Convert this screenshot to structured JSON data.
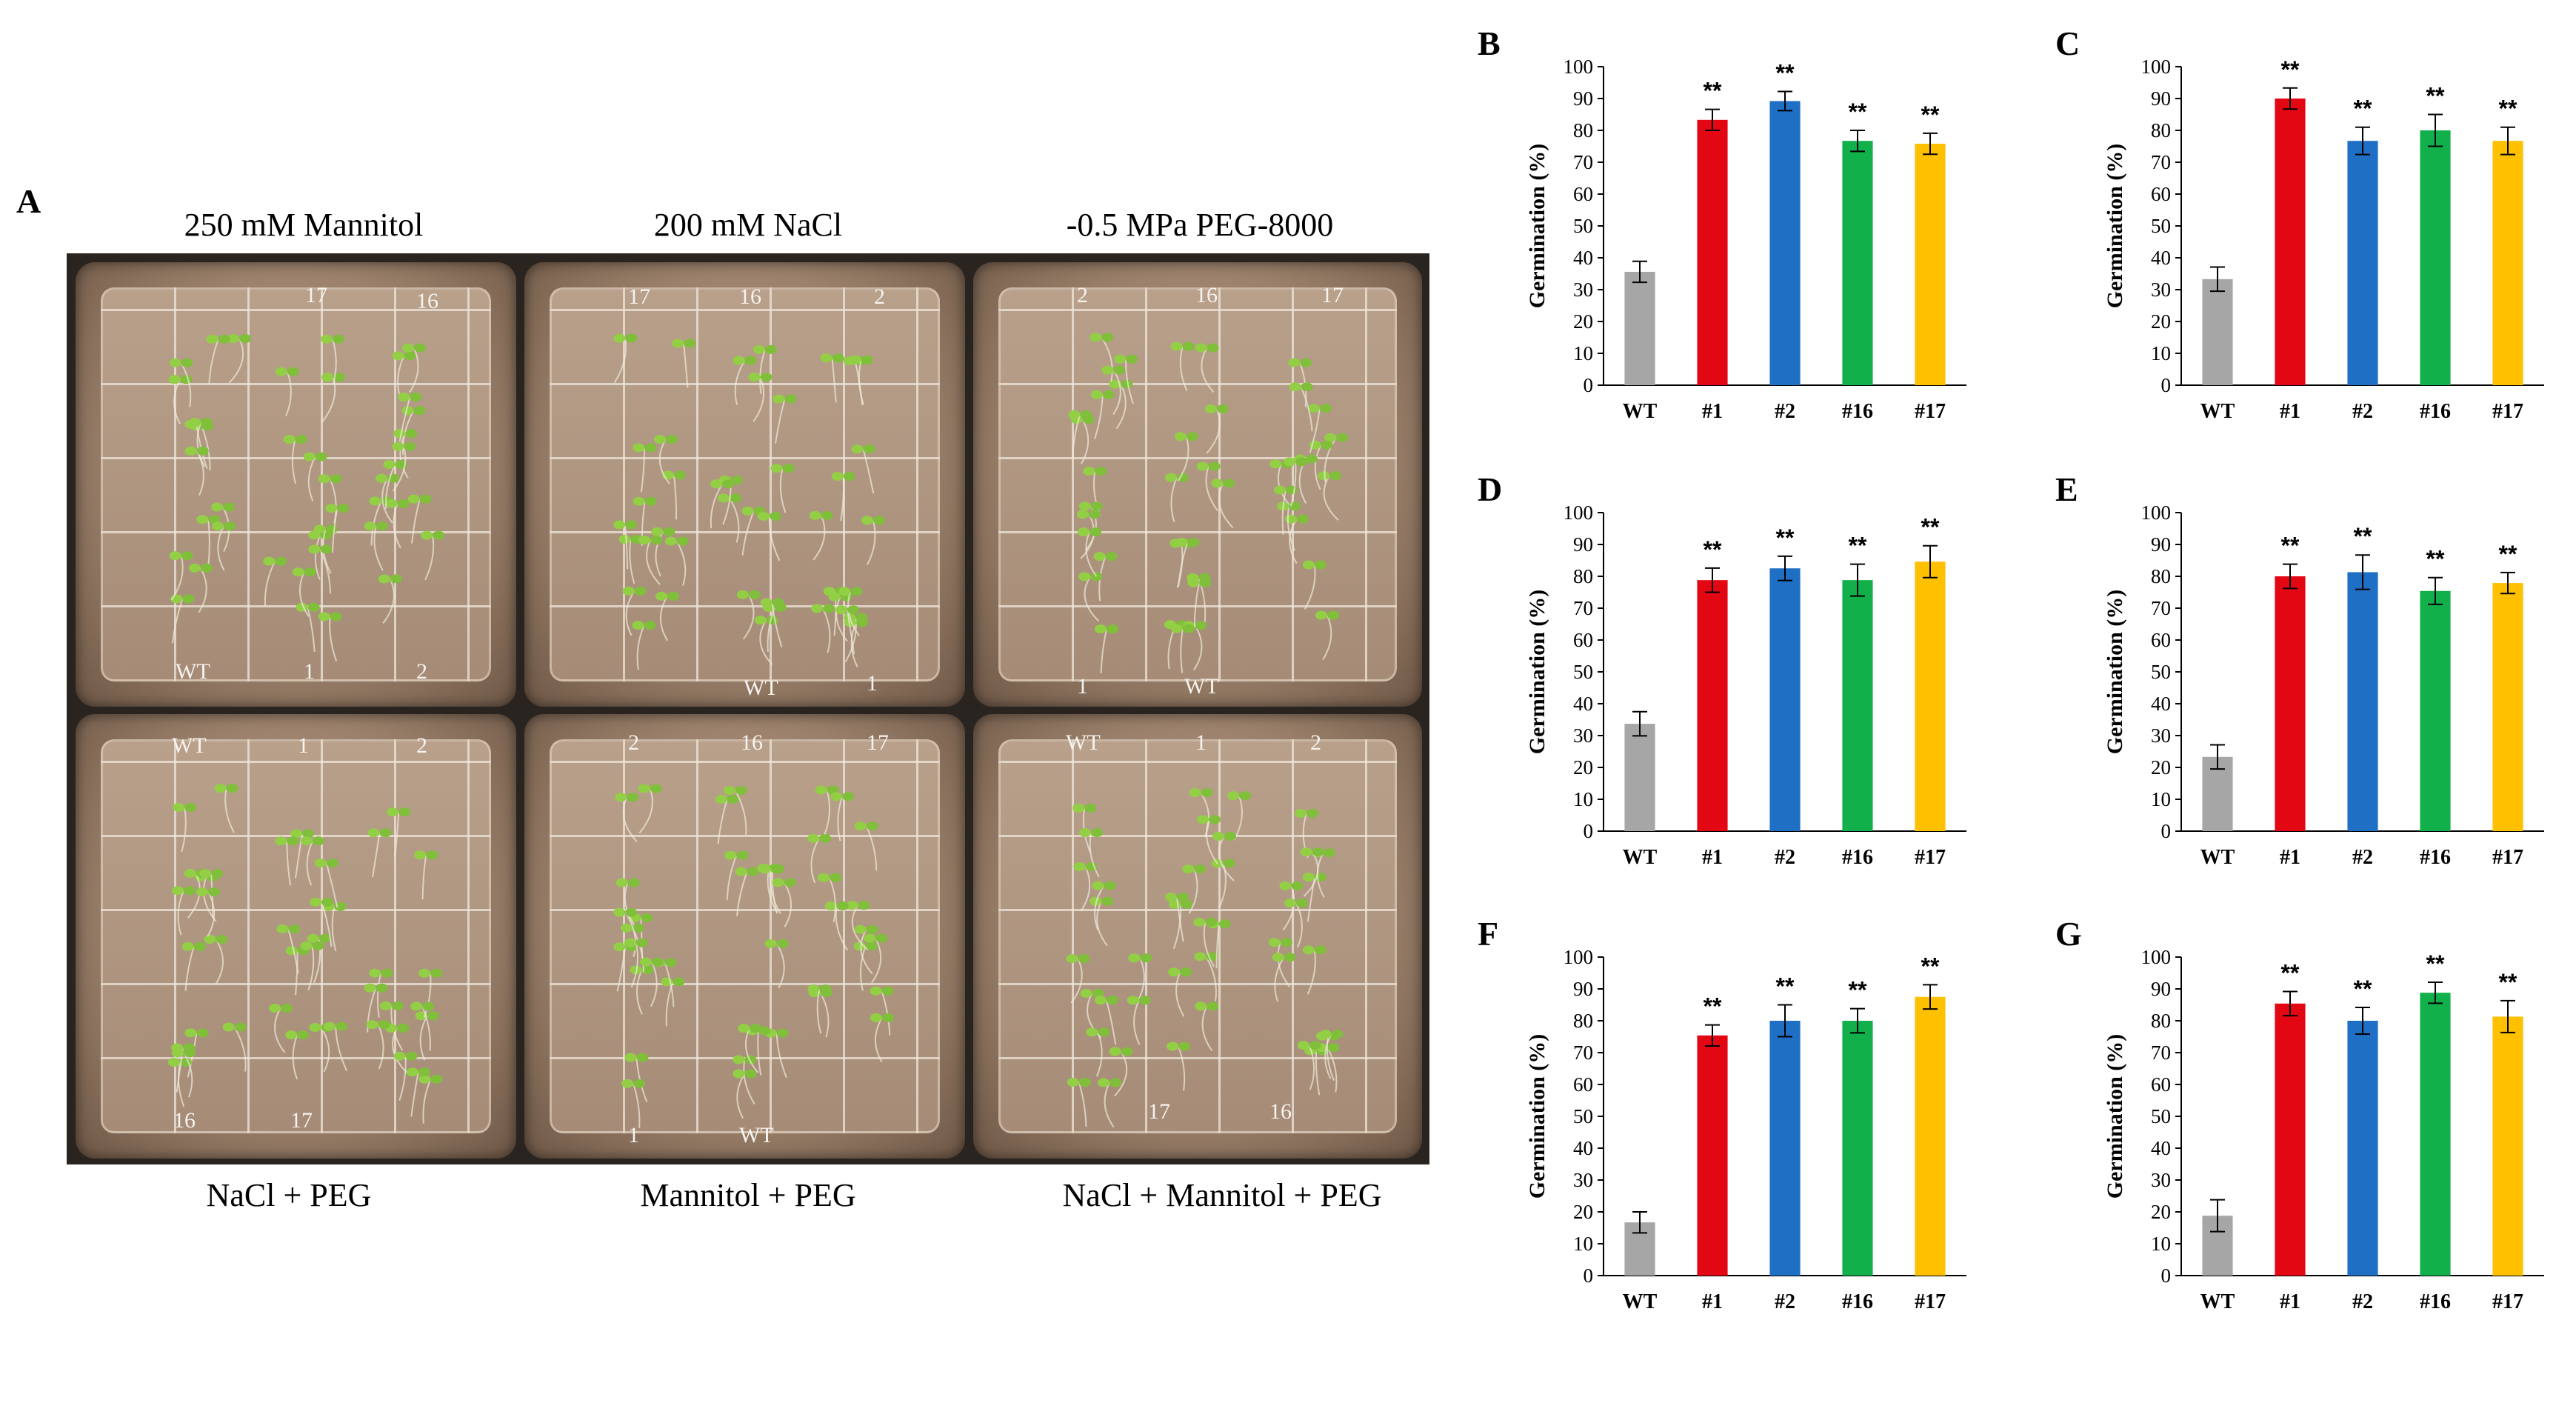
{
  "figure": {
    "panel_a_label": "A",
    "top_titles": [
      "250 mM Mannitol",
      "200 mM NaCl",
      "-0.5 MPa PEG-8000"
    ],
    "bottom_titles": [
      "NaCl + PEG",
      "Mannitol + PEG",
      "NaCl + Mannitol + PEG"
    ],
    "plates": [
      {
        "labels": [
          "17",
          "16",
          "WT",
          "1",
          "2"
        ]
      },
      {
        "labels": [
          "17",
          "16",
          "2",
          "WT",
          "1"
        ]
      },
      {
        "labels": [
          "2",
          "16",
          "17",
          "1",
          "WT"
        ]
      },
      {
        "labels": [
          "WT",
          "1",
          "2",
          "16",
          "17"
        ]
      },
      {
        "labels": [
          "2",
          "16",
          "17",
          "1",
          "WT"
        ]
      },
      {
        "labels": [
          "WT",
          "1",
          "2",
          "17",
          "16"
        ]
      }
    ],
    "significance_mark": "**",
    "colors": {
      "WT": "#a6a6a6",
      "#1": "#e30613",
      "#2": "#1f6fc5",
      "#16": "#12b04a",
      "#17": "#ffc000"
    }
  },
  "chart_data": [
    {
      "panel": "B",
      "type": "bar",
      "categories": [
        "WT",
        "#1",
        "#2",
        "#16",
        "#17"
      ],
      "values": [
        35.6,
        83.3,
        89.2,
        76.7,
        75.8
      ],
      "errors": [
        3.3,
        3.3,
        3.0,
        3.3,
        3.3
      ],
      "significance": [
        "",
        "**",
        "**",
        "**",
        "**"
      ],
      "xlabel": "",
      "ylabel": "Germination (%)",
      "ylim": [
        0,
        100
      ],
      "yticks": [
        0,
        10,
        20,
        30,
        40,
        50,
        60,
        70,
        80,
        90,
        100
      ]
    },
    {
      "panel": "C",
      "type": "bar",
      "categories": [
        "WT",
        "#1",
        "#2",
        "#16",
        "#17"
      ],
      "values": [
        33.3,
        90.0,
        76.7,
        80.0,
        76.7
      ],
      "errors": [
        3.8,
        3.3,
        4.3,
        5.0,
        4.3
      ],
      "significance": [
        "",
        "**",
        "**",
        "**",
        "**"
      ],
      "xlabel": "",
      "ylabel": "Germination (%)",
      "ylim": [
        0,
        100
      ],
      "yticks": [
        0,
        10,
        20,
        30,
        40,
        50,
        60,
        70,
        80,
        90,
        100
      ]
    },
    {
      "panel": "D",
      "type": "bar",
      "categories": [
        "WT",
        "#1",
        "#2",
        "#16",
        "#17"
      ],
      "values": [
        33.7,
        78.8,
        82.5,
        78.8,
        84.6
      ],
      "errors": [
        3.8,
        3.8,
        3.8,
        5.0,
        5.0
      ],
      "significance": [
        "",
        "**",
        "**",
        "**",
        "**"
      ],
      "xlabel": "",
      "ylabel": "Germination (%)",
      "ylim": [
        0,
        100
      ],
      "yticks": [
        0,
        10,
        20,
        30,
        40,
        50,
        60,
        70,
        80,
        90,
        100
      ]
    },
    {
      "panel": "E",
      "type": "bar",
      "categories": [
        "WT",
        "#1",
        "#2",
        "#16",
        "#17"
      ],
      "values": [
        23.3,
        80.0,
        81.3,
        75.4,
        77.9
      ],
      "errors": [
        3.8,
        3.8,
        5.4,
        4.2,
        3.3
      ],
      "significance": [
        "",
        "**",
        "**",
        "**",
        "**"
      ],
      "xlabel": "",
      "ylabel": "Germination (%)",
      "ylim": [
        0,
        100
      ],
      "yticks": [
        0,
        10,
        20,
        30,
        40,
        50,
        60,
        70,
        80,
        90,
        100
      ]
    },
    {
      "panel": "F",
      "type": "bar",
      "categories": [
        "WT",
        "#1",
        "#2",
        "#16",
        "#17"
      ],
      "values": [
        16.7,
        75.4,
        80.0,
        80.0,
        87.5
      ],
      "errors": [
        3.3,
        3.3,
        5.0,
        3.8,
        3.8
      ],
      "significance": [
        "",
        "**",
        "**",
        "**",
        "**"
      ],
      "xlabel": "",
      "ylabel": "Germination (%)",
      "ylim": [
        0,
        100
      ],
      "yticks": [
        0,
        10,
        20,
        30,
        40,
        50,
        60,
        70,
        80,
        90,
        100
      ]
    },
    {
      "panel": "G",
      "type": "bar",
      "categories": [
        "WT",
        "#1",
        "#2",
        "#16",
        "#17"
      ],
      "values": [
        18.8,
        85.4,
        80.0,
        88.8,
        81.3
      ],
      "errors": [
        5.0,
        3.8,
        4.2,
        3.3,
        5.0
      ],
      "significance": [
        "",
        "**",
        "**",
        "**",
        "**"
      ],
      "xlabel": "",
      "ylabel": "Germination (%)",
      "ylim": [
        0,
        100
      ],
      "yticks": [
        0,
        10,
        20,
        30,
        40,
        50,
        60,
        70,
        80,
        90,
        100
      ]
    }
  ]
}
